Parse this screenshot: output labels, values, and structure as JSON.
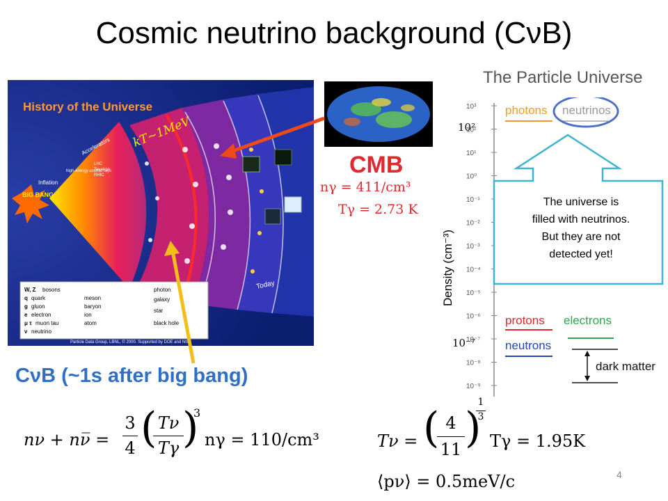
{
  "title": "Cosmic neutrino background (CνB)",
  "history_panel": {
    "heading": "History of the Universe",
    "kt_label": "kT~1MeV",
    "big_bang": "BIG BANG",
    "inflation": "Inflation",
    "accelerators": "Accelerators",
    "lhc": "LHC",
    "tevatron": "Tevatron",
    "rhic": "RHIC",
    "cosmic_rays": "high-energy cosmic rays",
    "today": "Today",
    "legend": [
      {
        "sym": "W, Z",
        "text": "bosons"
      },
      {
        "sym": "q",
        "text": "quark"
      },
      {
        "sym": "g",
        "text": "gluon"
      },
      {
        "sym": "e",
        "text": "electron"
      },
      {
        "sym": "μ τ",
        "text": "muon tau"
      },
      {
        "sym": "ν",
        "text": "neutrino"
      }
    ],
    "legend_right": [
      "photon",
      "meson",
      "baryon",
      "ion",
      "atom",
      "galaxy",
      "star",
      "black hole"
    ],
    "credit": "Particle Data Group, LBNL, © 2000. Supported by DOE and NSF"
  },
  "cmb": {
    "label": "CMB",
    "density": "nγ = 411/cm³",
    "temperature": "Tγ = 2.73 K"
  },
  "cnb_label": "CνB (~1s after big bang)",
  "particle_universe": {
    "heading": "The Particle Universe",
    "ylabel": "Density (cm⁻³)",
    "ticks": [
      "10³",
      "10²",
      "10¹",
      "10⁰",
      "10⁻¹",
      "10⁻²",
      "10⁻³",
      "10⁻⁴",
      "10⁻⁵",
      "10⁻⁶",
      "10⁻⁷",
      "10⁻⁸",
      "10⁻⁹"
    ],
    "photons": "photons",
    "neutrinos": "neutrinos",
    "protons": "protons",
    "neutrons": "neutrons",
    "electrons": "electrons",
    "dark_matter": "dark matter",
    "mark_high": "10²",
    "mark_low": "10⁻⁷"
  },
  "callout": {
    "lines": [
      "The universe is",
      "filled with neutrinos.",
      "But they are not",
      "detected yet!"
    ]
  },
  "formulas": {
    "f1_lhs": "nν + nν̅ =",
    "f1_frac_num": "3",
    "f1_frac_den": "4",
    "f1_t_num": "Tν",
    "f1_t_den": "Tγ",
    "f1_exp": "3",
    "f1_rhs": "nγ = 110/cm³",
    "f2_lhs": "Tν =",
    "f2_num": "4",
    "f2_den": "11",
    "f2_exp_num": "1",
    "f2_exp_den": "3",
    "f2_rhs": "Tγ = 1.95K",
    "f3": "⟨pν⟩ = 0.5meV/c"
  },
  "page_number": "4",
  "colors": {
    "red": "#e0282e",
    "blue": "#2f6fc4",
    "callout_border": "#3bb4cc"
  }
}
